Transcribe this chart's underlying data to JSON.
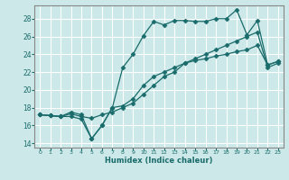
{
  "xlabel": "Humidex (Indice chaleur)",
  "bg_color": "#cce8e8",
  "grid_color": "#ffffff",
  "line_color": "#1a6b6b",
  "xlim": [
    -0.5,
    23.5
  ],
  "ylim": [
    13.5,
    29.5
  ],
  "xticks": [
    0,
    1,
    2,
    3,
    4,
    5,
    6,
    7,
    8,
    9,
    10,
    11,
    12,
    13,
    14,
    15,
    16,
    17,
    18,
    19,
    20,
    21,
    22,
    23
  ],
  "yticks": [
    14,
    16,
    18,
    20,
    22,
    24,
    26,
    28
  ],
  "line1_x": [
    0,
    1,
    2,
    3,
    4,
    5,
    6,
    7,
    8,
    9,
    10,
    11,
    12,
    13,
    14,
    15,
    16,
    17,
    18,
    19,
    20,
    21,
    22,
    23
  ],
  "line1_y": [
    17.2,
    17.1,
    17.0,
    17.5,
    17.2,
    14.5,
    16.0,
    18.0,
    18.2,
    19.0,
    20.5,
    21.5,
    22.0,
    22.5,
    23.0,
    23.3,
    23.5,
    23.8,
    24.0,
    24.3,
    24.5,
    25.0,
    22.8,
    23.2
  ],
  "line2_x": [
    0,
    1,
    2,
    3,
    4,
    5,
    6,
    7,
    8,
    9,
    10,
    11,
    12,
    13,
    14,
    15,
    16,
    17,
    18,
    19,
    20,
    21,
    22,
    23
  ],
  "line2_y": [
    17.2,
    17.1,
    17.0,
    17.0,
    16.7,
    14.5,
    16.0,
    18.0,
    22.5,
    24.0,
    26.1,
    27.7,
    27.3,
    27.8,
    27.8,
    27.7,
    27.7,
    28.0,
    28.0,
    29.0,
    26.2,
    27.8,
    22.8,
    23.2
  ],
  "line3_x": [
    0,
    1,
    2,
    3,
    4,
    5,
    6,
    7,
    8,
    9,
    10,
    11,
    12,
    13,
    14,
    15,
    16,
    17,
    18,
    19,
    20,
    21,
    22,
    23
  ],
  "line3_y": [
    17.2,
    17.1,
    17.0,
    17.3,
    17.0,
    16.8,
    17.2,
    17.5,
    18.0,
    18.5,
    19.5,
    20.5,
    21.5,
    22.0,
    23.0,
    23.5,
    24.0,
    24.5,
    25.0,
    25.5,
    26.0,
    26.5,
    22.5,
    23.0
  ]
}
